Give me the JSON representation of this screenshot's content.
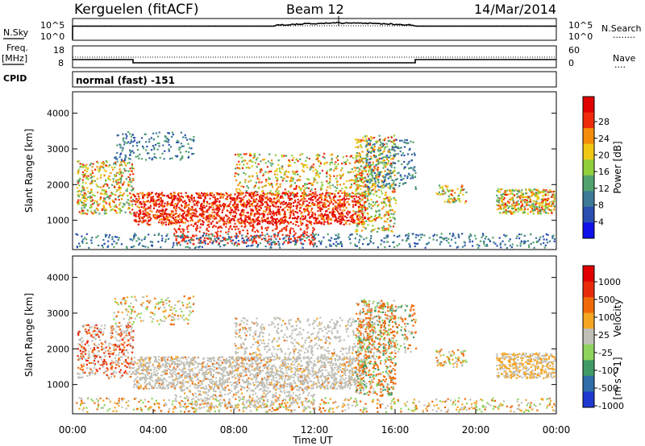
{
  "header": {
    "station": "Kerguelen (fitACF)",
    "beam": "Beam 12",
    "date": "14/Mar/2014"
  },
  "noise_panel": {
    "left_label": "N.Sky",
    "left_ticks": [
      "10^5",
      "10^0"
    ],
    "right_ticks": [
      "10^5",
      "10^0"
    ],
    "right_label": "N.Search",
    "right_label_dots": "........"
  },
  "freq_panel": {
    "left_label_top": "Freq.",
    "left_label_bottom": "[MHz]",
    "left_ticks": [
      "18",
      "8"
    ],
    "right_ticks": [
      "60",
      "0"
    ],
    "right_label": "Nave",
    "right_label_dots": "....",
    "freq_mhz": [
      {
        "from_h": 0.0,
        "to_h": 3.0,
        "value": 12
      },
      {
        "from_h": 3.0,
        "to_h": 17.0,
        "value": 10
      },
      {
        "from_h": 17.0,
        "to_h": 24.0,
        "value": 12
      }
    ],
    "nave_level": 30
  },
  "cpid": {
    "label": "CPID",
    "text": "normal (fast) -151"
  },
  "chart_data": [
    {
      "type": "heatmap",
      "name": "power",
      "ylabel": "Slant Range [km]",
      "xlabel": "",
      "x_range_h": [
        0,
        24
      ],
      "ylim": [
        180,
        4600
      ],
      "yticks": [
        "1000",
        "2000",
        "3000",
        "4000"
      ],
      "yticks_values": [
        1000,
        2000,
        3000,
        4000
      ],
      "colorbar": {
        "label": "Power [dB]",
        "ticks": [
          "4",
          "8",
          "12",
          "16",
          "20",
          "24",
          "28"
        ],
        "colors": [
          "#1010e8",
          "#2a4fb0",
          "#3d7a96",
          "#52a26e",
          "#92cf3c",
          "#f0c814",
          "#f58c0a",
          "#ee2a0a",
          "#e00000"
        ]
      }
    },
    {
      "type": "heatmap",
      "name": "velocity",
      "ylabel": "Slant Range [km]",
      "xlabel": "Time UT",
      "x_range_h": [
        0,
        24
      ],
      "ylim": [
        180,
        4600
      ],
      "yticks": [
        "1000",
        "2000",
        "3000",
        "4000"
      ],
      "yticks_values": [
        1000,
        2000,
        3000,
        4000
      ],
      "xticks": [
        "00:00",
        "04:00",
        "08:00",
        "12:00",
        "16:00",
        "20:00",
        "00:00"
      ],
      "colorbar": {
        "label": "Velocity",
        "unit": "[m s^-1]",
        "ticks": [
          "1000",
          "500",
          "100",
          "25",
          "-25",
          "-100",
          "-500",
          "-1000"
        ],
        "colors": [
          "#1f39d0",
          "#2f6ea8",
          "#3f9a66",
          "#8ed45c",
          "#c0c0b8",
          "#f5a623",
          "#f06a0a",
          "#e82a0a",
          "#e00000"
        ]
      }
    }
  ]
}
